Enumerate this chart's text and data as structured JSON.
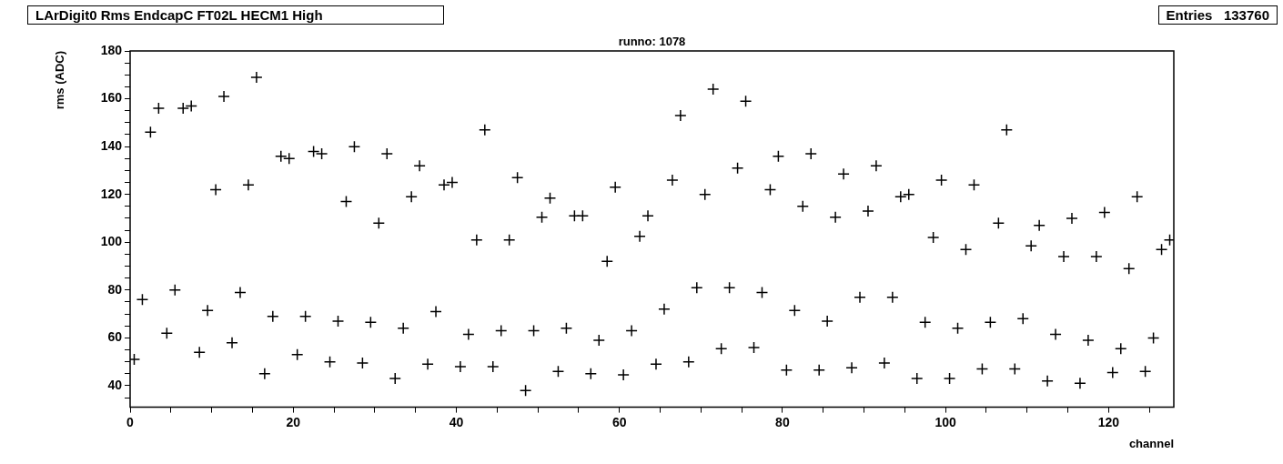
{
  "chart_data": {
    "type": "scatter",
    "title": "LArDigit0 Rms EndcapC FT02L HECM1 High",
    "subtitle": "runno: 1078",
    "xlabel": "channel",
    "ylabel": "rms (ADC)",
    "annotations": [
      "Entries   133760"
    ],
    "marker": "cross",
    "grid": false,
    "color": "#000000",
    "x": [
      0.5,
      1.5,
      2.5,
      3.5,
      4.5,
      5.5,
      6.5,
      7.5,
      8.5,
      9.5,
      10.5,
      11.5,
      12.5,
      13.5,
      14.5,
      15.5,
      16.5,
      17.5,
      18.5,
      19.5,
      20.5,
      21.5,
      22.5,
      23.5,
      24.5,
      25.5,
      26.5,
      27.5,
      28.5,
      29.5,
      30.5,
      31.5,
      32.5,
      33.5,
      34.5,
      35.5,
      36.5,
      37.5,
      38.5,
      39.5,
      40.5,
      41.5,
      42.5,
      43.5,
      44.5,
      45.5,
      46.5,
      47.5,
      48.5,
      49.5,
      50.5,
      51.5,
      52.5,
      53.5,
      54.5,
      55.5,
      56.5,
      57.5,
      58.5,
      59.5,
      60.5,
      61.5,
      62.5,
      63.5,
      64.5,
      65.5,
      66.5,
      67.5,
      68.5,
      69.5,
      70.5,
      71.5,
      72.5,
      73.5,
      74.5,
      75.5,
      76.5,
      77.5,
      78.5,
      79.5,
      80.5,
      81.5,
      82.5,
      83.5,
      84.5,
      85.5,
      86.5,
      87.5,
      88.5,
      89.5,
      90.5,
      91.5,
      92.5,
      93.5,
      94.5,
      95.5,
      96.5,
      97.5,
      98.5,
      99.5,
      100.5,
      101.5,
      102.5,
      103.5,
      104.5,
      105.5,
      106.5,
      107.5,
      108.5,
      109.5,
      110.5,
      111.5,
      112.5,
      113.5,
      114.5,
      115.5,
      116.5,
      117.5,
      118.5,
      119.5,
      120.5,
      121.5,
      122.5,
      123.5,
      124.5,
      125.5,
      126.5,
      127.5
    ],
    "values": [
      51,
      76,
      146,
      156,
      62,
      80,
      156,
      157,
      54,
      71.5,
      122,
      161,
      58,
      79,
      124,
      169,
      45,
      69,
      136,
      135,
      53,
      69,
      138,
      137,
      50,
      67,
      117,
      140,
      49.5,
      66.5,
      108,
      137,
      43,
      64,
      119,
      132,
      49,
      71,
      124,
      125,
      48,
      61.5,
      101,
      147,
      48,
      63,
      101,
      127,
      38,
      63,
      110.5,
      118.5,
      46,
      64,
      111,
      111,
      45,
      59,
      92,
      123,
      44.5,
      63,
      102.5,
      111,
      49,
      72,
      126,
      153,
      50,
      81,
      120,
      164,
      55.5,
      81,
      131,
      159,
      56,
      79,
      122,
      136,
      46.5,
      71.5,
      115,
      137,
      46.5,
      67,
      110.5,
      128.5,
      47.5,
      77,
      113,
      132,
      49.5,
      77,
      119,
      120,
      43,
      66.5,
      102,
      126,
      43,
      64,
      97,
      124,
      47,
      66.5,
      108,
      147,
      47,
      68,
      98.5,
      107,
      42,
      61.5,
      94,
      110,
      41,
      59,
      94,
      112.5,
      45.5,
      55.5,
      89,
      119,
      46,
      60,
      97,
      101
    ],
    "xlim": [
      0,
      128
    ],
    "ylim": [
      31,
      180
    ],
    "xticks": [
      0,
      {
        "value": 5,
        "label": null
      },
      {
        "value": 10,
        "label": null
      },
      {
        "value": 15,
        "label": null
      },
      20,
      {
        "value": 25,
        "label": null
      },
      {
        "value": 30,
        "label": null
      },
      {
        "value": 35,
        "label": null
      },
      40,
      {
        "value": 45,
        "label": null
      },
      {
        "value": 50,
        "label": null
      },
      {
        "value": 55,
        "label": null
      },
      60,
      {
        "value": 65,
        "label": null
      },
      {
        "value": 70,
        "label": null
      },
      {
        "value": 75,
        "label": null
      },
      80,
      {
        "value": 85,
        "label": null
      },
      {
        "value": 90,
        "label": null
      },
      {
        "value": 95,
        "label": null
      },
      100,
      {
        "value": 105,
        "label": null
      },
      {
        "value": 110,
        "label": null
      },
      {
        "value": 115,
        "label": null
      },
      120,
      {
        "value": 125,
        "label": null
      }
    ],
    "yticks": [
      {
        "value": 35,
        "label": null
      },
      40,
      {
        "value": 45,
        "label": null
      },
      {
        "value": 50,
        "label": null
      },
      {
        "value": 55,
        "label": null
      },
      60,
      {
        "value": 65,
        "label": null
      },
      {
        "value": 70,
        "label": null
      },
      {
        "value": 75,
        "label": null
      },
      80,
      {
        "value": 85,
        "label": null
      },
      {
        "value": 90,
        "label": null
      },
      {
        "value": 95,
        "label": null
      },
      100,
      {
        "value": 105,
        "label": null
      },
      {
        "value": 110,
        "label": null
      },
      {
        "value": 115,
        "label": null
      },
      120,
      {
        "value": 125,
        "label": null
      },
      {
        "value": 130,
        "label": null
      },
      {
        "value": 135,
        "label": null
      },
      140,
      {
        "value": 145,
        "label": null
      },
      {
        "value": 150,
        "label": null
      },
      {
        "value": 155,
        "label": null
      },
      160,
      {
        "value": 165,
        "label": null
      },
      {
        "value": 170,
        "label": null
      },
      {
        "value": 175,
        "label": null
      },
      180
    ]
  }
}
